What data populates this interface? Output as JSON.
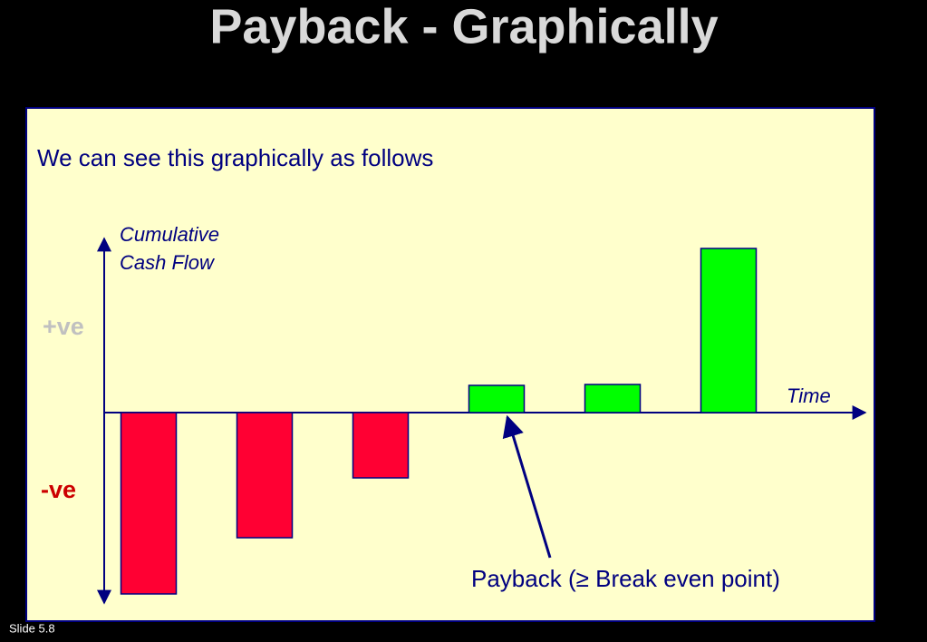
{
  "slide_number": "Slide 5.8",
  "chart_data": {
    "type": "bar",
    "title": "Payback - Graphically",
    "subtitle": "We can see this graphically as follows",
    "y_label": "Cumulative Cash Flow",
    "x_label": "Time",
    "positive_label": "+ve",
    "negative_label": "-ve",
    "annotation": "Payback (≥ Break even point)",
    "categories": [
      null,
      null,
      null,
      null,
      null,
      null
    ],
    "values": [
      -200,
      -138,
      -72,
      30,
      31,
      181
    ],
    "colors": [
      "#ff0033",
      "#ff0033",
      "#ff0033",
      "#00ff00",
      "#00ff00",
      "#00ff00"
    ],
    "ylim": [
      -210,
      190
    ]
  }
}
